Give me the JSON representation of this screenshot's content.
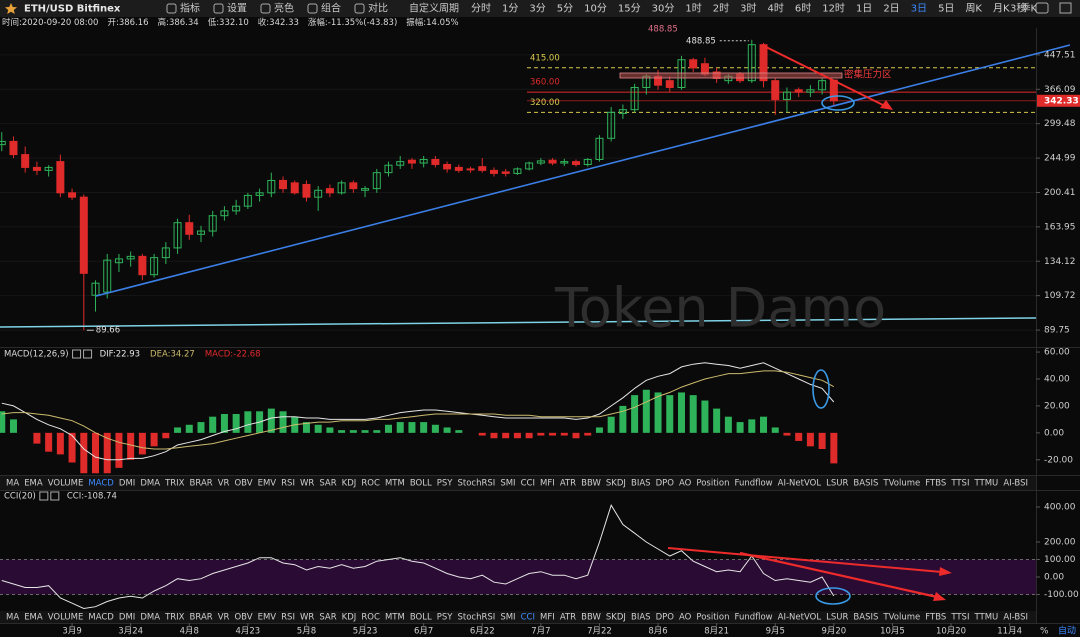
{
  "toolbar": {
    "symbol": "ETH/USD Bitfinex",
    "buttons": [
      "指标",
      "设置",
      "亮色",
      "组合",
      "对比"
    ],
    "custom_period": "自定义周期",
    "periods": [
      "分时",
      "1分",
      "3分",
      "5分",
      "10分",
      "15分",
      "30分",
      "1时",
      "2时",
      "3时",
      "4时",
      "6时",
      "12时",
      "1日",
      "2日",
      "3日",
      "5日",
      "周K",
      "月K",
      "季K"
    ],
    "active_period": 15,
    "refresh": "3秒"
  },
  "info_bar": [
    "时间:2020-09-20 08:00",
    "开:386.16",
    "高:386.34",
    "低:332.10",
    "收:342.33",
    "涨幅:-11.35%(-43.83)",
    "振幅:14.05%"
  ],
  "time_axis": {
    "xlim": [
      -0.15,
      88.25
    ],
    "xticks": [
      {
        "value": 6,
        "label": "3月9"
      },
      {
        "value": 11,
        "label": "3月24"
      },
      {
        "value": 16,
        "label": "4月8"
      },
      {
        "value": 21,
        "label": "4月23"
      },
      {
        "value": 26,
        "label": "5月8"
      },
      {
        "value": 31,
        "label": "5月23"
      },
      {
        "value": 36,
        "label": "6月7"
      },
      {
        "value": 41,
        "label": "6月22"
      },
      {
        "value": 46,
        "label": "7月7"
      },
      {
        "value": 51,
        "label": "7月22"
      },
      {
        "value": 56,
        "label": "8月6"
      },
      {
        "value": 61,
        "label": "8月21"
      },
      {
        "value": 66,
        "label": "9月5"
      },
      {
        "value": 71,
        "label": "9月20"
      },
      {
        "value": 76,
        "label": "10月5"
      },
      {
        "value": 81,
        "label": "10月20"
      },
      {
        "value": 86,
        "label": "11月4"
      }
    ]
  },
  "chart_data": [
    {
      "type": "candlestick",
      "log_scale": true,
      "grid": true,
      "up_color": "#2fb35a",
      "down_color": "#e02b2b",
      "ylim": [
        81.3,
        523.6
      ],
      "yticks": [
        447.51,
        366.09,
        299.48,
        244.99,
        200.41,
        163.95,
        134.12,
        109.72,
        89.75
      ],
      "ohlc": [
        [
          265,
          285,
          255,
          270
        ],
        [
          270,
          278,
          245,
          250
        ],
        [
          250,
          262,
          225,
          232
        ],
        [
          232,
          240,
          222,
          228
        ],
        [
          228,
          235,
          220,
          232
        ],
        [
          240,
          250,
          195,
          200
        ],
        [
          200,
          205,
          192,
          195
        ],
        [
          195,
          198,
          89.66,
          125
        ],
        [
          110,
          120,
          100,
          118
        ],
        [
          112,
          140,
          108,
          135
        ],
        [
          133,
          140,
          126,
          136
        ],
        [
          136,
          142,
          130,
          138
        ],
        [
          138,
          140,
          120,
          124
        ],
        [
          124,
          140,
          122,
          137
        ],
        [
          137,
          150,
          132,
          145
        ],
        [
          145,
          172,
          140,
          168
        ],
        [
          168,
          176,
          152,
          157
        ],
        [
          157,
          165,
          150,
          160
        ],
        [
          160,
          180,
          155,
          175
        ],
        [
          175,
          185,
          170,
          180
        ],
        [
          180,
          192,
          176,
          185
        ],
        [
          185,
          200,
          182,
          197
        ],
        [
          197,
          205,
          190,
          200
        ],
        [
          200,
          225,
          195,
          215
        ],
        [
          215,
          220,
          200,
          205
        ],
        [
          212,
          215,
          198,
          200
        ],
        [
          210,
          215,
          190,
          195
        ],
        [
          195,
          208,
          180,
          203
        ],
        [
          205,
          210,
          195,
          200
        ],
        [
          200,
          215,
          198,
          212
        ],
        [
          212,
          215,
          200,
          205
        ],
        [
          203,
          208,
          195,
          205
        ],
        [
          205,
          230,
          200,
          225
        ],
        [
          225,
          240,
          220,
          235
        ],
        [
          235,
          248,
          230,
          240
        ],
        [
          242,
          245,
          230,
          238
        ],
        [
          238,
          248,
          232,
          243
        ],
        [
          243,
          248,
          232,
          236
        ],
        [
          236,
          240,
          225,
          230
        ],
        [
          232,
          236,
          225,
          228
        ],
        [
          230,
          233,
          225,
          229
        ],
        [
          233,
          245,
          225,
          228
        ],
        [
          228,
          232,
          220,
          224
        ],
        [
          226,
          230,
          220,
          224
        ],
        [
          224,
          232,
          222,
          230
        ],
        [
          230,
          240,
          228,
          238
        ],
        [
          238,
          245,
          235,
          241
        ],
        [
          242,
          245,
          235,
          238
        ],
        [
          238,
          244,
          234,
          240
        ],
        [
          240,
          243,
          233,
          236
        ],
        [
          236,
          245,
          233,
          243
        ],
        [
          243,
          280,
          240,
          275
        ],
        [
          275,
          330,
          270,
          320
        ],
        [
          318,
          335,
          308,
          325
        ],
        [
          325,
          378,
          320,
          370
        ],
        [
          370,
          400,
          355,
          395
        ],
        [
          395,
          410,
          365,
          375
        ],
        [
          385,
          395,
          360,
          370
        ],
        [
          370,
          445,
          365,
          435
        ],
        [
          435,
          440,
          405,
          415
        ],
        [
          425,
          440,
          395,
          400
        ],
        [
          405,
          415,
          380,
          390
        ],
        [
          385,
          400,
          378,
          395
        ],
        [
          400,
          405,
          380,
          385
        ],
        [
          385,
          488.85,
          380,
          475
        ],
        [
          475,
          480,
          370,
          385
        ],
        [
          385,
          390,
          315,
          345
        ],
        [
          345,
          370,
          320,
          360
        ],
        [
          365,
          370,
          350,
          360
        ],
        [
          360,
          375,
          350,
          365
        ],
        [
          365,
          390,
          355,
          385
        ],
        [
          386.16,
          386.34,
          332.1,
          342.33
        ]
      ],
      "levels": [
        {
          "value": 415,
          "label": "415.00",
          "color": "#d8c94c",
          "dashed": true
        },
        {
          "value": 360,
          "label": "360.00",
          "color": "#e02b2b",
          "dashed": false
        },
        {
          "value": 320,
          "label": "320.00",
          "color": "#d8c94c",
          "dashed": true
        }
      ],
      "high_marker": {
        "value": 488.85,
        "label": "488.85"
      },
      "low_marker": {
        "value": 89.66,
        "label": "89.66"
      },
      "last_price": {
        "value": 342.33,
        "label": "342.33",
        "color": "#e02b2b"
      },
      "annotation": "密集压力区",
      "watermark": "Token Damo"
    },
    {
      "type": "macd",
      "title": "MACD(12,26,9)",
      "ylim": [
        -31.3,
        63
      ],
      "yticks": [
        {
          "value": 60,
          "label": "60.00"
        },
        {
          "value": 40,
          "label": "40.00"
        },
        {
          "value": 20,
          "label": "20.00"
        },
        {
          "value": 0,
          "label": "0.00"
        },
        {
          "value": -20,
          "label": "-20.00"
        }
      ],
      "up_color": "#2fb35a",
      "down_color": "#e02b2b",
      "series": [
        {
          "label": "DIF:22.93",
          "color": "#e6e6e6",
          "style": "line",
          "values": [
            22,
            20,
            15,
            10,
            6,
            3,
            -2,
            -12,
            -18,
            -20,
            -20,
            -19,
            -19,
            -17,
            -14,
            -9,
            -7,
            -5,
            -2,
            1,
            3,
            6,
            8,
            11,
            12,
            12,
            11,
            11,
            10,
            10,
            10,
            10,
            11,
            13,
            15,
            16,
            17,
            17,
            16,
            15,
            14,
            13,
            12,
            11,
            11,
            11,
            11,
            11,
            11,
            10,
            11,
            14,
            20,
            26,
            33,
            39,
            42,
            44,
            49,
            51,
            52,
            51,
            50,
            48,
            50,
            52,
            48,
            44,
            40,
            36,
            33,
            22.93
          ]
        },
        {
          "label": "DEA:34.27",
          "color": "#cdbb6e",
          "style": "line",
          "values": [
            14,
            15,
            15,
            14,
            13,
            11,
            9,
            5,
            0,
            -4,
            -7,
            -9,
            -11,
            -12,
            -12,
            -11,
            -10,
            -9,
            -8,
            -6,
            -4,
            -2,
            0,
            2,
            4,
            6,
            7,
            8,
            8,
            9,
            9,
            9,
            10,
            10,
            11,
            12,
            13,
            14,
            14,
            14,
            14,
            14,
            14,
            13,
            13,
            13,
            12,
            12,
            12,
            12,
            12,
            12,
            14,
            16,
            19,
            23,
            27,
            30,
            34,
            37,
            40,
            42,
            44,
            44,
            45,
            46,
            46,
            45,
            43,
            41,
            39,
            34.27
          ]
        },
        {
          "label": "MACD:-22.68",
          "color": "#e02b2b",
          "style": "histogram",
          "values": [
            16,
            10,
            0,
            -8,
            -14,
            -16,
            -22,
            -30,
            -30,
            -30,
            -26,
            -20,
            -16,
            -10,
            -4,
            4,
            6,
            8,
            12,
            14,
            14,
            16,
            16,
            18,
            16,
            12,
            8,
            6,
            4,
            2,
            2,
            2,
            2,
            6,
            8,
            8,
            8,
            6,
            4,
            2,
            0,
            -2,
            -4,
            -4,
            -4,
            -4,
            -2,
            -2,
            -2,
            -4,
            -2,
            4,
            12,
            20,
            28,
            32,
            30,
            28,
            30,
            28,
            24,
            18,
            12,
            8,
            10,
            12,
            4,
            -2,
            -6,
            -10,
            -12,
            -22.68
          ]
        }
      ]
    },
    {
      "type": "line",
      "title": "CCI(20)",
      "legend": "CCI:-108.74",
      "color": "#e6e6e6",
      "ylim": [
        -194.3,
        491.4
      ],
      "yticks": [
        {
          "value": 400,
          "label": "400.00"
        },
        {
          "value": 200,
          "label": "200.00"
        },
        {
          "value": 100,
          "label": "100.00"
        },
        {
          "value": 0,
          "label": "0.00"
        },
        {
          "value": -100,
          "label": "-100.00"
        }
      ],
      "band": {
        "from": -100,
        "to": 100,
        "color": "#2a0b33"
      },
      "values": [
        -20,
        -40,
        -60,
        -60,
        -50,
        -120,
        -150,
        -180,
        -170,
        -140,
        -120,
        -110,
        -120,
        -80,
        -50,
        -10,
        -20,
        -10,
        20,
        40,
        60,
        80,
        110,
        110,
        80,
        70,
        40,
        60,
        50,
        70,
        50,
        60,
        90,
        100,
        110,
        90,
        80,
        50,
        20,
        0,
        -10,
        10,
        -30,
        -40,
        -10,
        20,
        30,
        10,
        10,
        -10,
        10,
        200,
        410,
        300,
        250,
        200,
        160,
        120,
        150,
        90,
        60,
        30,
        40,
        30,
        120,
        20,
        -20,
        -10,
        -20,
        -30,
        0,
        -108.74
      ]
    }
  ],
  "indicator_tabs": {
    "items": [
      "MA",
      "EMA",
      "VOLUME",
      "MACD",
      "DMI",
      "DMA",
      "TRIX",
      "BRAR",
      "VR",
      "OBV",
      "EMV",
      "RSI",
      "WR",
      "SAR",
      "KDJ",
      "ROC",
      "MTM",
      "BOLL",
      "PSY",
      "StochRSI",
      "SMI",
      "CCI",
      "MFI",
      "ATR",
      "BBW",
      "SKDJ",
      "BIAS",
      "DPO",
      "AO",
      "Position",
      "Fundflow",
      "AI-NetVOL",
      "LSUR",
      "BASIS",
      "TVolume",
      "FTBS",
      "TTSI",
      "TTMU",
      "AI-BSI"
    ],
    "active": [
      3,
      21
    ]
  },
  "footer": {
    "percent": "%",
    "auto": "自动"
  }
}
